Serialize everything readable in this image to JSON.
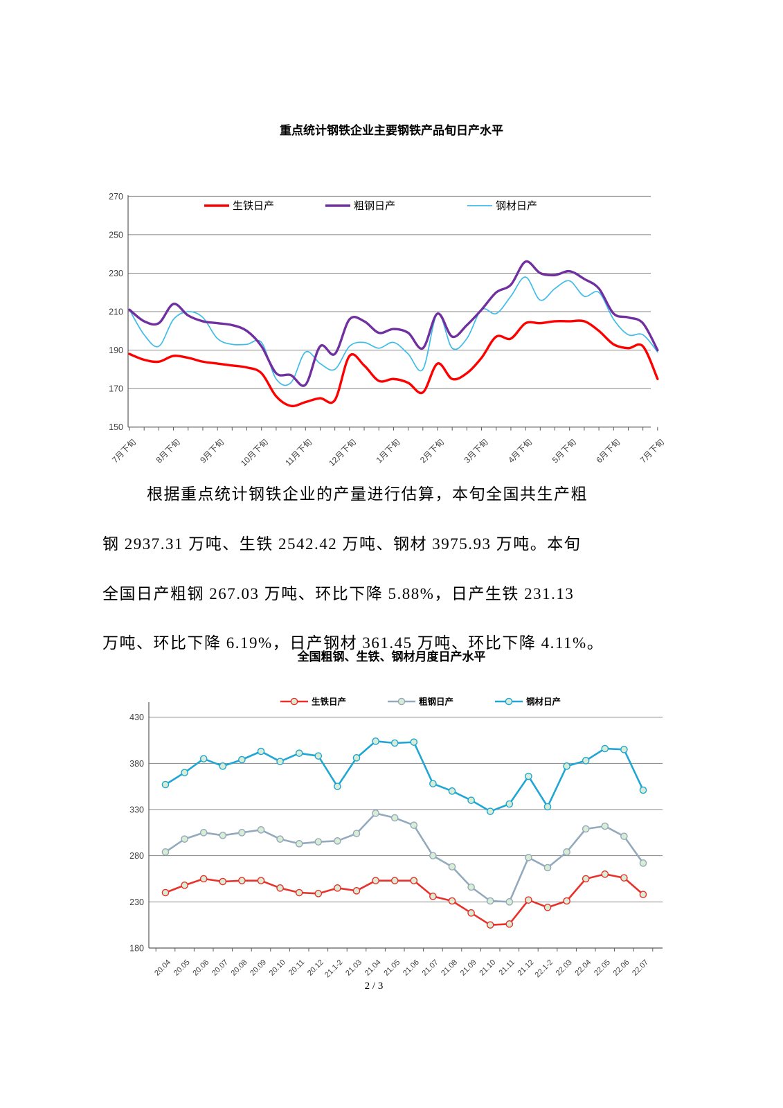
{
  "page": {
    "footer": "2 / 3"
  },
  "paragraph": {
    "lines": [
      "根据重点统计钢铁企业的产量进行估算，本旬全国共生产粗",
      "钢 2937.31 万吨、生铁 2542.42 万吨、钢材 3975.93 万吨。本旬",
      "全国日产粗钢 267.03 万吨、环比下降 5.88%，日产生铁 231.13",
      "万吨、环比下降 6.19%，日产钢材 361.45 万吨、环比下降 4.11%。"
    ]
  },
  "chart_data": [
    {
      "type": "line",
      "title": "重点统计钢铁企业主要钢铁产品旬日产水平",
      "xlabel": "",
      "ylabel": "",
      "ylim": [
        150,
        270
      ],
      "yticks": [
        150,
        170,
        190,
        210,
        230,
        250,
        270
      ],
      "grid": true,
      "legend_position": "top-inside",
      "x_tick_labels": [
        "7月下旬",
        "8月下旬",
        "9月下旬",
        "10月下旬",
        "11月下旬",
        "12月下旬",
        "1月下旬",
        "2月下旬",
        "3月下旬",
        "4月下旬",
        "5月下旬",
        "6月下旬",
        "7月下旬"
      ],
      "label_every": 3,
      "points_per_series": 37,
      "series": [
        {
          "name": "生铁日产",
          "color": "#FF0000",
          "width": 3.4,
          "values": [
            188,
            185,
            184,
            187,
            186,
            184,
            183,
            182,
            181,
            178,
            166,
            161,
            163,
            165,
            164,
            187,
            182,
            174,
            175,
            173,
            168,
            183,
            175,
            178,
            186,
            197,
            196,
            204,
            204,
            205,
            205,
            205,
            200,
            193,
            191,
            192,
            175
          ]
        },
        {
          "name": "粗钢日产",
          "color": "#7030A0",
          "width": 3.4,
          "values": [
            211,
            205,
            204,
            214,
            208,
            205,
            204,
            203,
            200,
            192,
            178,
            177,
            172,
            192,
            188,
            206,
            205,
            199,
            201,
            199,
            191,
            209,
            197,
            203,
            211,
            220,
            224,
            236,
            230,
            229,
            231,
            227,
            222,
            209,
            207,
            204,
            190
          ]
        },
        {
          "name": "钢材日产",
          "color": "#3FBCE8",
          "width": 1.7,
          "values": [
            211,
            198,
            192,
            206,
            210,
            207,
            196,
            193,
            193,
            194,
            175,
            173,
            189,
            183,
            180,
            192,
            194,
            191,
            194,
            188,
            180,
            209,
            191,
            196,
            211,
            209,
            218,
            228,
            216,
            222,
            226,
            218,
            220,
            206,
            198,
            198,
            189
          ]
        }
      ]
    },
    {
      "type": "line",
      "title": "全国粗钢、生铁、钢材月度日产水平",
      "xlabel": "",
      "ylabel": "",
      "ylim": [
        180,
        430
      ],
      "yticks": [
        180,
        230,
        280,
        330,
        380,
        430
      ],
      "grid": true,
      "legend_position": "top",
      "marker": "circle",
      "marker_fill": "#D9ECD4",
      "categories": [
        "20.04",
        "20.05",
        "20.06",
        "20.07",
        "20.08",
        "20.09",
        "20.10",
        "20.11",
        "20.12",
        "21.1-2",
        "21.03",
        "21.04",
        "21.05",
        "21.06",
        "21.07",
        "21.08",
        "21.09",
        "21.10",
        "21.11",
        "21.12",
        "22.1-2",
        "22.03",
        "22.04",
        "22.05",
        "22.06",
        "22.07"
      ],
      "series": [
        {
          "name": "生铁日产",
          "color": "#E8312A",
          "width": 2.6,
          "values": [
            240,
            248,
            255,
            252,
            253,
            253,
            245,
            240,
            239,
            245,
            242,
            253,
            253,
            253,
            236,
            231,
            218,
            205,
            206,
            232,
            224,
            231,
            255,
            260,
            256,
            238
          ]
        },
        {
          "name": "粗钢日产",
          "color": "#93A9BC",
          "width": 2.6,
          "values": [
            284,
            298,
            305,
            302,
            305,
            308,
            298,
            293,
            295,
            296,
            304,
            326,
            321,
            313,
            280,
            268,
            246,
            231,
            230,
            278,
            267,
            284,
            309,
            312,
            301,
            272
          ]
        },
        {
          "name": "钢材日产",
          "color": "#1FA6D4",
          "width": 2.6,
          "values": [
            357,
            370,
            385,
            377,
            384,
            393,
            382,
            391,
            388,
            355,
            386,
            404,
            402,
            403,
            358,
            350,
            340,
            328,
            336,
            366,
            333,
            377,
            383,
            396,
            395,
            351
          ]
        }
      ]
    }
  ]
}
